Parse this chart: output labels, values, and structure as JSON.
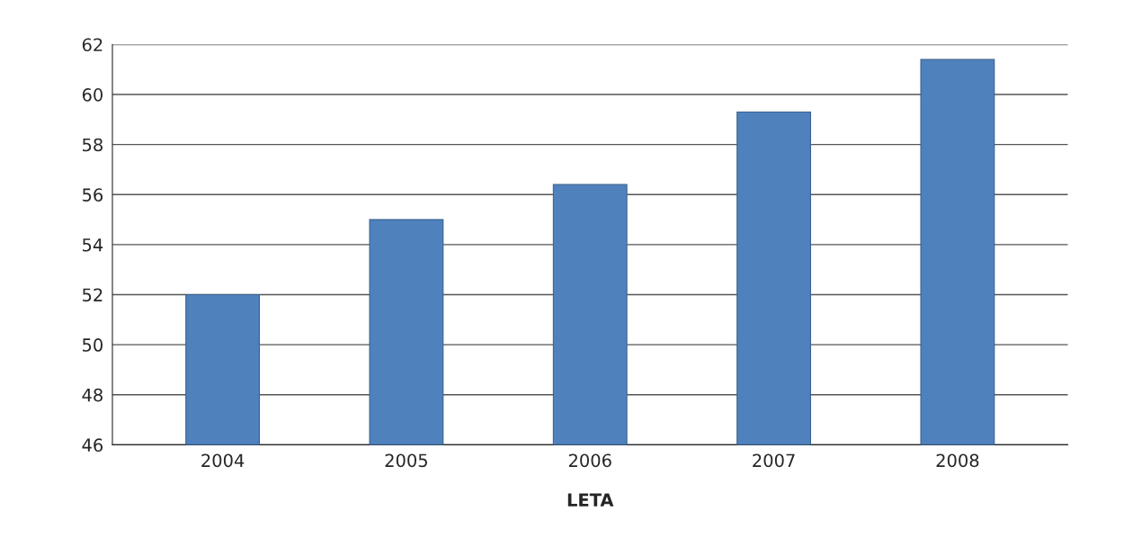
{
  "chart_data": {
    "type": "bar",
    "xlabel": "LETA",
    "categories": [
      "2004",
      "2005",
      "2006",
      "2007",
      "2008"
    ],
    "values": [
      52,
      55,
      56.4,
      59.3,
      61.4
    ],
    "color": "#4f81bd",
    "ylim": [
      46,
      62
    ],
    "yticks": [
      46,
      48,
      50,
      52,
      54,
      56,
      58,
      60,
      62
    ],
    "grid": "y"
  }
}
